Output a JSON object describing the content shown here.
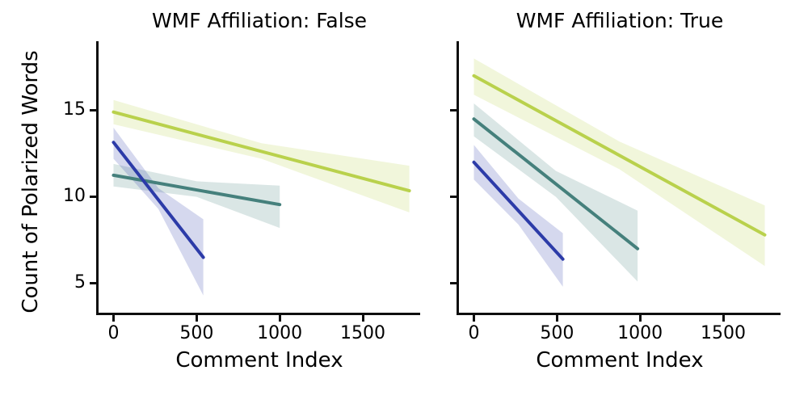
{
  "figure": {
    "background": "#ffffff",
    "axis_color": "#0f0f0f",
    "band_opacity": 0.2,
    "line_width": 4
  },
  "chart_data": [
    {
      "type": "line",
      "title": "WMF Affiliation: False",
      "xlabel": "Comment Index",
      "ylabel": "Count of Polarized Words",
      "xlim": [
        -90,
        1845
      ],
      "ylim": [
        3.3,
        19.0
      ],
      "xticks": [
        0,
        500,
        1000,
        1500
      ],
      "yticks": [
        5,
        10,
        15
      ],
      "yticklabels": [
        "5",
        "10",
        "15"
      ],
      "grid": false,
      "legend": "none",
      "series": [
        {
          "name": "green",
          "color": "#b9d14c",
          "line": {
            "x": [
              0,
              1780
            ],
            "y": [
              14.9,
              10.35
            ]
          },
          "band": {
            "x": [
              0,
              890,
              1780
            ],
            "upper": [
              15.6,
              13.1,
              11.8
            ],
            "lower": [
              14.2,
              12.2,
              9.1
            ]
          }
        },
        {
          "name": "teal",
          "color": "#45807c",
          "line": {
            "x": [
              0,
              1000
            ],
            "y": [
              11.25,
              9.55
            ]
          },
          "band": {
            "x": [
              0,
              500,
              1000
            ],
            "upper": [
              11.9,
              10.9,
              10.65
            ],
            "lower": [
              10.6,
              10.0,
              8.2
            ]
          }
        },
        {
          "name": "blue",
          "color": "#2c3ba8",
          "line": {
            "x": [
              0,
              540
            ],
            "y": [
              13.15,
              6.5
            ]
          },
          "band": {
            "x": [
              0,
              270,
              540
            ],
            "upper": [
              14.0,
              10.5,
              8.7
            ],
            "lower": [
              12.2,
              9.3,
              4.3
            ]
          }
        }
      ]
    },
    {
      "type": "line",
      "title": "WMF Affiliation: True",
      "xlabel": "Comment Index",
      "ylabel": "Count of Polarized Words",
      "xlim": [
        -90,
        1845
      ],
      "ylim": [
        3.3,
        19.0
      ],
      "xticks": [
        0,
        500,
        1000,
        1500
      ],
      "yticks": [
        5,
        10,
        15
      ],
      "yticklabels": [],
      "grid": false,
      "legend": "none",
      "series": [
        {
          "name": "green",
          "color": "#b9d14c",
          "line": {
            "x": [
              0,
              1750
            ],
            "y": [
              17.0,
              7.8
            ]
          },
          "band": {
            "x": [
              0,
              875,
              1750
            ],
            "upper": [
              18.0,
              13.2,
              9.5
            ],
            "lower": [
              15.9,
              11.6,
              6.0
            ]
          }
        },
        {
          "name": "teal",
          "color": "#45807c",
          "line": {
            "x": [
              0,
              985
            ],
            "y": [
              14.5,
              7.0
            ]
          },
          "band": {
            "x": [
              0,
              493,
              985
            ],
            "upper": [
              15.4,
              11.5,
              9.2
            ],
            "lower": [
              13.5,
              10.0,
              5.1
            ]
          }
        },
        {
          "name": "blue",
          "color": "#2c3ba8",
          "line": {
            "x": [
              0,
              535
            ],
            "y": [
              12.0,
              6.4
            ]
          },
          "band": {
            "x": [
              0,
              268,
              535
            ],
            "upper": [
              13.0,
              9.9,
              7.9
            ],
            "lower": [
              11.0,
              8.4,
              4.8
            ]
          }
        }
      ]
    }
  ]
}
